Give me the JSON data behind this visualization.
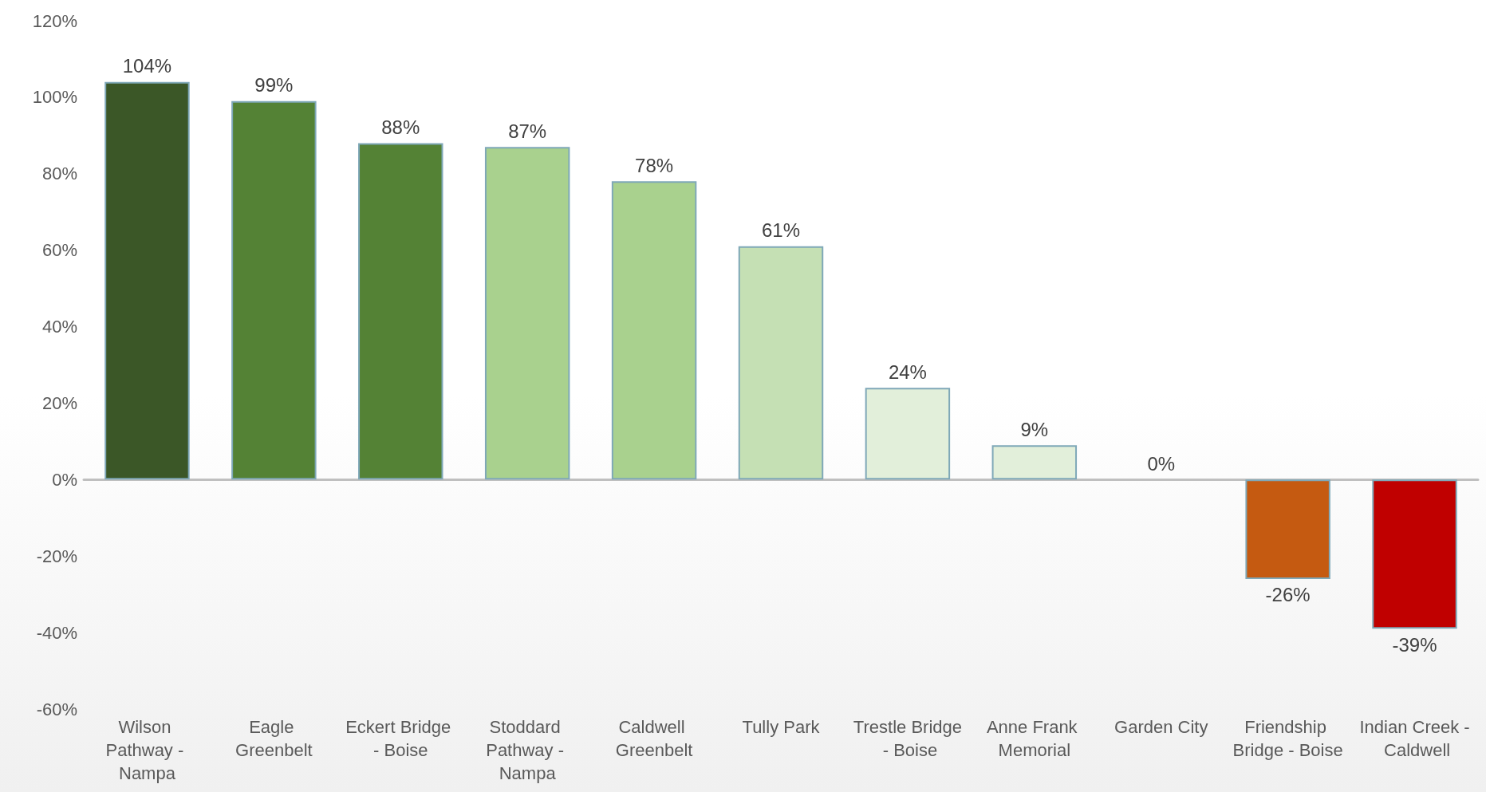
{
  "chart_data": {
    "type": "bar",
    "categories": [
      "Wilson Pathway - Nampa",
      "Eagle Greenbelt",
      "Eckert Bridge - Boise",
      "Stoddard Pathway - Nampa",
      "Caldwell Greenbelt",
      "Tully Park",
      "Trestle Bridge - Boise",
      "Anne Frank Memorial",
      "Garden City",
      "Friendship Bridge - Boise",
      "Indian Creek - Caldwell"
    ],
    "values": [
      104,
      99,
      88,
      87,
      78,
      61,
      24,
      9,
      0,
      -26,
      -39
    ],
    "value_labels": [
      "104%",
      "99%",
      "88%",
      "87%",
      "78%",
      "61%",
      "24%",
      "9%",
      "0%",
      "-26%",
      "-39%"
    ],
    "colors": [
      "#3b5727",
      "#548235",
      "#548235",
      "#a9d18e",
      "#a9d18e",
      "#c5e0b4",
      "#e2efda",
      "#e2efda",
      "#e2efda",
      "#c55a11",
      "#c00000"
    ],
    "ylim": [
      -60,
      120
    ],
    "yticks": [
      {
        "value": -60,
        "label": "-60%"
      },
      {
        "value": -40,
        "label": "-40%"
      },
      {
        "value": -20,
        "label": "-20%"
      },
      {
        "value": 0,
        "label": "0%"
      },
      {
        "value": 20,
        "label": "20%"
      },
      {
        "value": 40,
        "label": "40%"
      },
      {
        "value": 60,
        "label": "60%"
      },
      {
        "value": 80,
        "label": "80%"
      },
      {
        "value": 100,
        "label": "100%"
      },
      {
        "value": 120,
        "label": "120%"
      }
    ],
    "orientation": "vertical"
  }
}
